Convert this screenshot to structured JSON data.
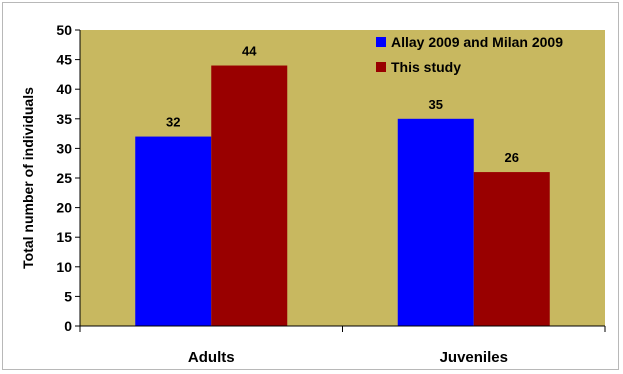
{
  "chart_data": {
    "type": "bar",
    "title": "",
    "xlabel": "",
    "ylabel": "Total number of individuals",
    "categories": [
      "Adults",
      "Juveniles"
    ],
    "series": [
      {
        "name": "Allay 2009  and Milan 2009",
        "values": [
          32,
          35
        ],
        "color": "#0000ff"
      },
      {
        "name": "This study",
        "values": [
          44,
          26
        ],
        "color": "#990000"
      }
    ],
    "ylim": [
      0,
      50
    ],
    "yticks": [
      0,
      5,
      10,
      15,
      20,
      25,
      30,
      35,
      40,
      45,
      50
    ],
    "grid": false,
    "legend_position": "top-right",
    "plot_background": "#c8b860",
    "data_labels": true
  }
}
